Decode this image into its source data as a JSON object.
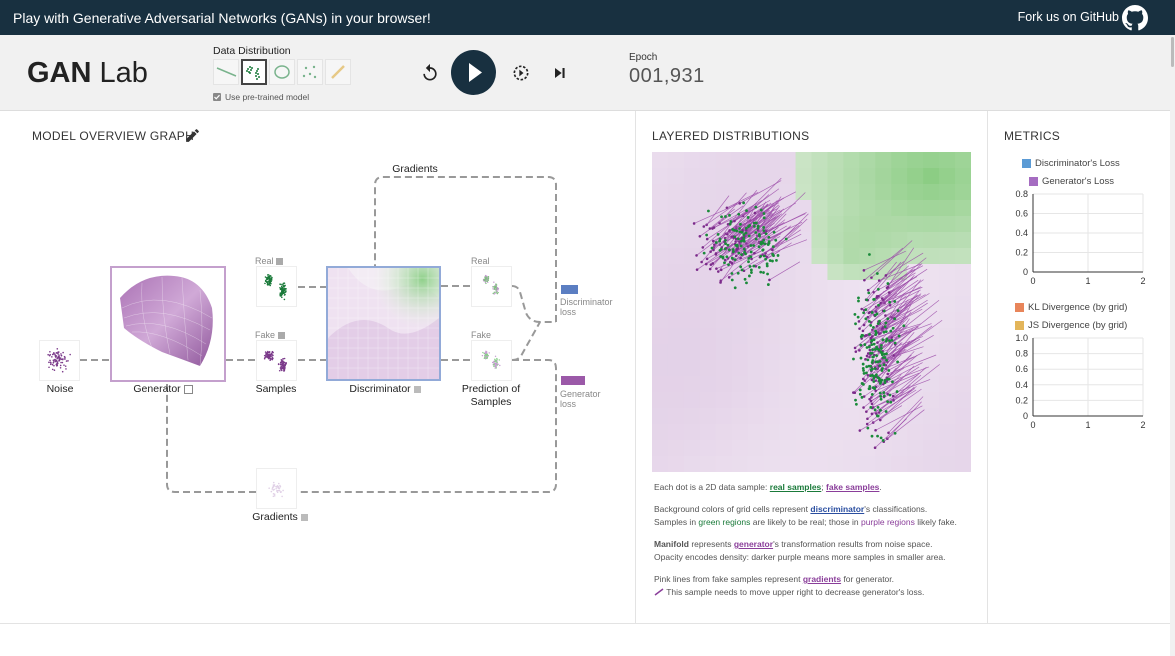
{
  "topbar": {
    "tagline": "Play with Generative Adversarial Networks (GANs) in your browser!",
    "fork_label": "Fork us on GitHub",
    "icon": "github-icon"
  },
  "header": {
    "logo_bold": "GAN",
    "logo_rest": " Lab",
    "data_distribution_label": "Data Distribution",
    "distribution_options": [
      "line",
      "two-clusters",
      "ring",
      "scattered",
      "disjoint"
    ],
    "selected_distribution": "two-clusters",
    "pretrained_label": "Use pre-trained model",
    "pretrained_checked": true,
    "epoch_label": "Epoch",
    "epoch_value": "001,931",
    "controls": [
      "reset-icon",
      "play-icon",
      "slow-motion-icon",
      "step-icon"
    ]
  },
  "model_overview": {
    "title": "MODEL OVERVIEW GRAPH",
    "gradients_top": "Gradients",
    "noise": "Noise",
    "generator": "Generator",
    "real": "Real",
    "fake": "Fake",
    "samples": "Samples",
    "discriminator": "Discriminator",
    "real2": "Real",
    "fake2": "Fake",
    "prediction_line1": "Prediction of",
    "prediction_line2": "Samples",
    "disc_loss_line1": "Discriminator",
    "disc_loss_line2": "loss",
    "gen_loss_line1": "Generator",
    "gen_loss_line2": "loss",
    "gradients_bottom": "Gradients",
    "colors": {
      "disc_loss": "#5b7ec2",
      "gen_loss": "#9b59a8",
      "dashed": "#999999"
    }
  },
  "layered": {
    "title": "LAYERED DISTRIBUTIONS",
    "p1_a": "Each dot is a 2D data sample: ",
    "p1_real": "real samples",
    "p1_sep": "; ",
    "p1_fake": "fake samples",
    "p1_end": ".",
    "p2_a": "Background colors of grid cells represent ",
    "p2_disc": "discriminator",
    "p2_b": "'s classifications.",
    "p2_c": "Samples in ",
    "p2_green": "green regions",
    "p2_d": " are likely to be real; those in ",
    "p2_purple": "purple regions",
    "p2_e": " likely fake.",
    "p3_manifold": "Manifold",
    "p3_a": " represents ",
    "p3_gen": "generator",
    "p3_b": "'s transformation results from noise space.",
    "p3_c": "Opacity encodes density: darker purple means more samples in smaller area.",
    "p4_a": "Pink lines from fake samples represent ",
    "p4_grad": "gradients",
    "p4_b": " for generator.",
    "p4_c": "This sample needs to move upper right to decrease generator's loss."
  },
  "metrics": {
    "title": "METRICS",
    "chart_data": [
      {
        "type": "line",
        "series": [
          {
            "name": "Discriminator's Loss",
            "color": "#5b9bd5",
            "values": []
          },
          {
            "name": "Generator's Loss",
            "color": "#a56cc1",
            "values": []
          }
        ],
        "ylim": [
          0,
          0.8
        ],
        "yticks": [
          "0.8",
          "0.6",
          "0.4",
          "0.2",
          "0"
        ],
        "xticks": [
          "0",
          "1",
          "2"
        ]
      },
      {
        "type": "line",
        "series": [
          {
            "name": "KL Divergence (by grid)",
            "color": "#e8855a",
            "values": []
          },
          {
            "name": "JS Divergence (by grid)",
            "color": "#e3b55a",
            "values": []
          }
        ],
        "ylim": [
          0,
          1.0
        ],
        "yticks": [
          "1.0",
          "0.8",
          "0.6",
          "0.4",
          "0.2",
          "0"
        ],
        "xticks": [
          "0",
          "1",
          "2"
        ]
      }
    ]
  }
}
